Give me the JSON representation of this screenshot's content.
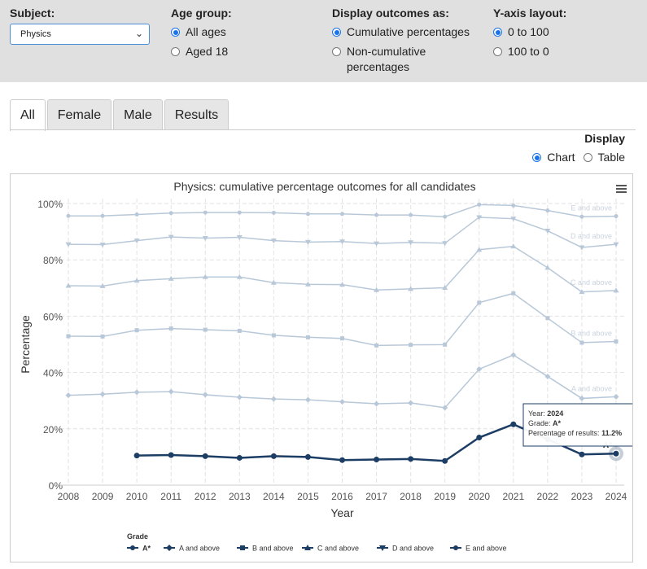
{
  "filters": {
    "subject": {
      "label": "Subject:",
      "value": "Physics"
    },
    "age_group": {
      "label": "Age group:",
      "options": [
        "All ages",
        "Aged 18"
      ],
      "selected": 0
    },
    "display_as": {
      "label": "Display outcomes as:",
      "options": [
        "Cumulative percentages",
        "Non-cumulative percentages"
      ],
      "selected": 0
    },
    "y_axis": {
      "label": "Y-axis layout:",
      "options": [
        "0 to 100",
        "100 to 0"
      ],
      "selected": 0
    }
  },
  "tabs": [
    "All",
    "Female",
    "Male",
    "Results"
  ],
  "active_tab": 0,
  "display": {
    "label": "Display",
    "options": [
      "Chart",
      "Table"
    ],
    "selected": 0
  },
  "colors": {
    "highlight": "#1c3d64",
    "muted": "#b8c8d8",
    "accent": "#1a73e8",
    "filter_bg": "#e0e0e0"
  },
  "chart_data": {
    "type": "line",
    "title": "Physics: cumulative percentage outcomes for all candidates",
    "xlabel": "Year",
    "ylabel": "Percentage",
    "ylim": [
      0,
      100
    ],
    "yticks": [
      "0%",
      "20%",
      "40%",
      "60%",
      "80%",
      "100%"
    ],
    "grid": true,
    "x": [
      2008,
      2009,
      2010,
      2011,
      2012,
      2013,
      2014,
      2015,
      2016,
      2017,
      2018,
      2019,
      2020,
      2021,
      2022,
      2023,
      2024
    ],
    "series": [
      {
        "name": "A*",
        "label": "A*",
        "marker": "circle",
        "highlighted": true,
        "values": [
          null,
          null,
          10.5,
          10.7,
          10.3,
          9.7,
          10.3,
          10.0,
          8.9,
          9.1,
          9.3,
          8.6,
          16.9,
          21.6,
          16.3,
          10.9,
          11.2
        ]
      },
      {
        "name": "A and above",
        "label": "A and above",
        "marker": "diamond",
        "values": [
          31.9,
          32.3,
          33.0,
          33.2,
          32.1,
          31.2,
          30.6,
          30.3,
          29.6,
          28.9,
          29.2,
          27.5,
          41.2,
          46.2,
          38.6,
          30.8,
          31.4
        ]
      },
      {
        "name": "B and above",
        "label": "B and above",
        "marker": "square",
        "values": [
          52.9,
          52.8,
          55.0,
          55.6,
          55.2,
          54.8,
          53.2,
          52.5,
          52.1,
          49.6,
          49.8,
          49.9,
          64.8,
          68.1,
          59.3,
          50.6,
          51.0
        ]
      },
      {
        "name": "C and above",
        "label": "C and above",
        "marker": "triangle",
        "values": [
          70.8,
          70.7,
          72.6,
          73.3,
          73.9,
          73.9,
          71.9,
          71.3,
          71.2,
          69.3,
          69.7,
          70.1,
          83.6,
          84.8,
          77.2,
          68.6,
          69.1
        ]
      },
      {
        "name": "D and above",
        "label": "D and above",
        "marker": "triangle-down",
        "values": [
          85.5,
          85.4,
          86.8,
          88.1,
          87.7,
          88.0,
          86.8,
          86.3,
          86.5,
          85.8,
          86.2,
          85.9,
          95.1,
          94.6,
          90.3,
          84.4,
          85.5
        ]
      },
      {
        "name": "E and above",
        "label": "E and above",
        "marker": "circle",
        "values": [
          95.6,
          95.6,
          96.1,
          96.6,
          96.8,
          96.8,
          96.7,
          96.3,
          96.3,
          95.9,
          95.9,
          95.3,
          99.6,
          99.3,
          97.5,
          95.3,
          95.5
        ]
      }
    ],
    "legend": {
      "title": "Grade",
      "position": "bottom"
    },
    "tooltip": {
      "year_label": "Year:",
      "year": "2024",
      "grade_label": "Grade:",
      "grade": "A*",
      "pct_label": "Percentage of results:",
      "pct": "11.2%"
    }
  }
}
